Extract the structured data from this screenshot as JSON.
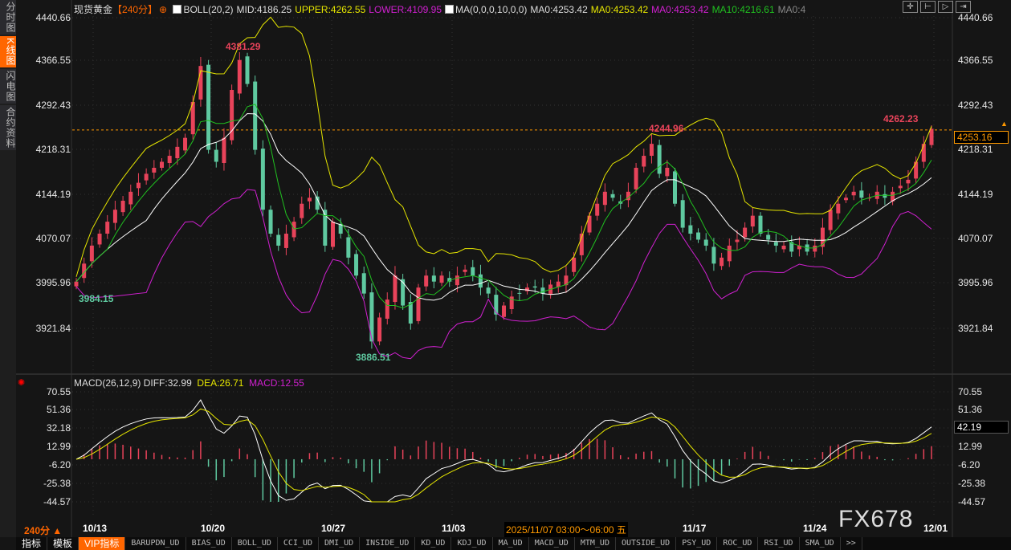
{
  "sidebar": {
    "tabs": [
      "分时图",
      "K线图",
      "闪电图",
      "合约资料"
    ],
    "active": 1
  },
  "header": {
    "symbol": "现货黄金",
    "period": "【240分】",
    "boll": "BOLL(20,2)",
    "mid": "MID:4186.25",
    "upper": "UPPER:4262.55",
    "lower": "LOWER:4109.95",
    "ma": "MA(0,0,0,10,0,0)",
    "ma1": "MA0:4253.42",
    "ma2": "MA0:4253.42",
    "ma3": "MA0:4253.42",
    "ma10": "MA10:4216.61",
    "ma5": "MA0:4"
  },
  "toolbar_icons": [
    "crosshair-icon",
    "zoom-range-icon",
    "play-range-icon",
    "shift-right-icon"
  ],
  "price_axis": [
    "4440.66",
    "4366.55",
    "4292.43",
    "4218.31",
    "4144.19",
    "4070.07",
    "3995.96",
    "3921.84"
  ],
  "current_price": "4253.16",
  "macd_axis": [
    "70.55",
    "51.36",
    "32.18",
    "12.99",
    "-6.20",
    "-25.38",
    "-44.57"
  ],
  "macd_current": "42.19",
  "macd_header": {
    "name": "MACD(26,12,9)",
    "diff": "DIFF:32.99",
    "dea": "DEA:26.71",
    "macd": "MACD:12.55"
  },
  "annotations": {
    "high1": "4381.29",
    "low0": "3984.15",
    "low1": "3886.51",
    "high2": "4244.96",
    "high3": "4262.23"
  },
  "dates": [
    "10/13",
    "10/20",
    "10/27",
    "11/03",
    "11/17",
    "11/24",
    "12/01"
  ],
  "crosshair_time": "2025/11/07 03:00～06:00 五",
  "period_selector": "240分 ▲",
  "watermark": "FX678",
  "bottom_tabs": [
    "指标",
    "模板",
    "VIP指标",
    "BARUPDN_UD",
    "BIAS_UD",
    "BOLL_UD",
    "CCI_UD",
    "DMI_UD",
    "INSIDE_UD",
    "KD_UD",
    "KDJ_UD",
    "MA_UD",
    "MACD_UD",
    "MTM_UD",
    "OUTSIDE_UD",
    "PSY_UD",
    "ROC_UD",
    "RSI_UD",
    "SMA_UD",
    ">>"
  ],
  "colors": {
    "up": "#e8435a",
    "down": "#5fc9a0",
    "upper": "#e6e600",
    "lower": "#d020d0",
    "mid": "#ffffff",
    "ma10": "#20c020",
    "accent": "#ff6600"
  },
  "chart_data": {
    "type": "candlestick",
    "ylim": [
      3921.84,
      4440.66
    ],
    "macd_ylim": [
      -44.57,
      70.55
    ],
    "closes": [
      4000,
      4030,
      4060,
      4080,
      4100,
      4120,
      4135,
      4150,
      4165,
      4180,
      4190,
      4200,
      4210,
      4225,
      4240,
      4300,
      4360,
      4220,
      4200,
      4240,
      4320,
      4370,
      4330,
      4220,
      4120,
      4080,
      4060,
      4080,
      4100,
      4130,
      4140,
      4120,
      4060,
      4100,
      4080,
      4040,
      4010,
      3980,
      3900,
      3940,
      3970,
      4010,
      3960,
      3930,
      3990,
      4010,
      4000,
      4010,
      4000,
      4010,
      4020,
      4010,
      3990,
      3980,
      3945,
      3960,
      3975,
      3980,
      3990,
      3990,
      3980,
      3995,
      4000,
      4010,
      4040,
      4080,
      4110,
      4130,
      4150,
      4140,
      4130,
      4150,
      4190,
      4210,
      4230,
      4180,
      4190,
      4130,
      4090,
      4080,
      4070,
      4060,
      4030,
      4040,
      4060,
      4070,
      4090,
      4110,
      4080,
      4070,
      4060,
      4060,
      4050,
      4060,
      4050,
      4060,
      4090,
      4120,
      4130,
      4140,
      4150,
      4140,
      4140,
      4150,
      4140,
      4150,
      4160,
      4170,
      4200,
      4230,
      4255
    ]
  }
}
